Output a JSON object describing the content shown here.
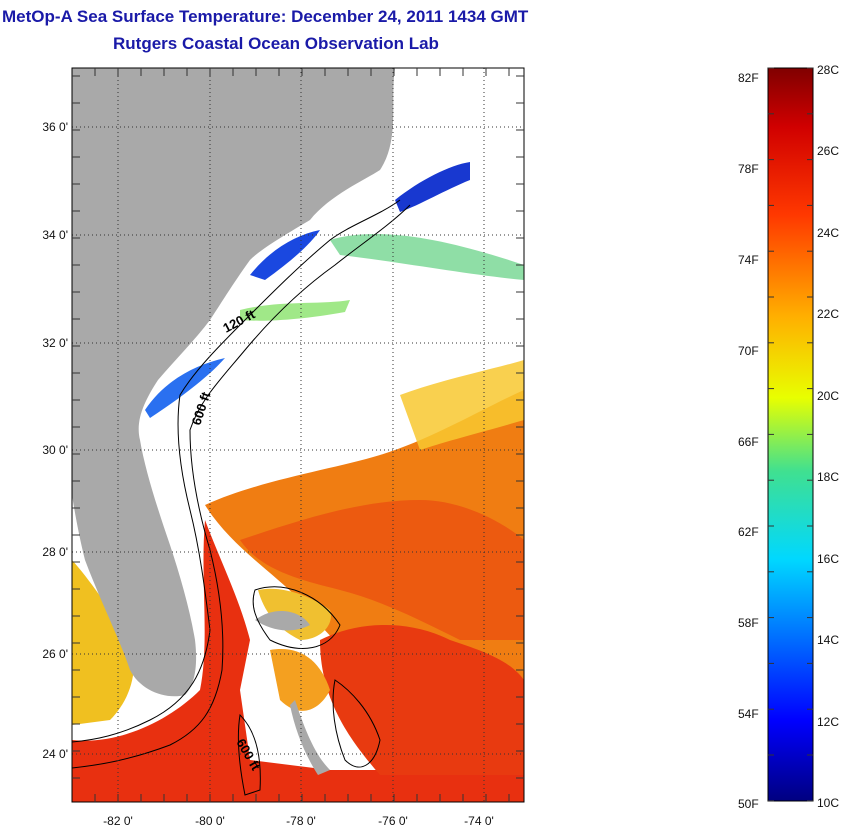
{
  "title": "MetOp-A Sea Surface Temperature:  December 24, 2011 1434 GMT",
  "subtitle": "Rutgers Coastal Ocean Observation Lab",
  "map": {
    "lat_ticks": [
      "36 0'",
      "34 0'",
      "32 0'",
      "30 0'",
      "28 0'",
      "26 0'",
      "24 0'"
    ],
    "lon_ticks": [
      "-82 0'",
      "-80 0'",
      "-78 0'",
      "-76 0'",
      "-74 0'"
    ],
    "contours": [
      "120 ft",
      "600 ft",
      "600 ft"
    ],
    "colors": {
      "land": "#a9a9a9",
      "ocean_nodata": "#ffffff",
      "warm": "#e83010",
      "cold": "#1038d8"
    }
  },
  "colorbar": {
    "f_labels": [
      "82F",
      "78F",
      "74F",
      "70F",
      "66F",
      "62F",
      "58F",
      "54F",
      "50F"
    ],
    "c_labels": [
      "28C",
      "26C",
      "24C",
      "22C",
      "20C",
      "18C",
      "16C",
      "14C",
      "12C",
      "10C"
    ],
    "range_c": [
      10,
      28
    ],
    "range_f": [
      50,
      82.4
    ]
  }
}
